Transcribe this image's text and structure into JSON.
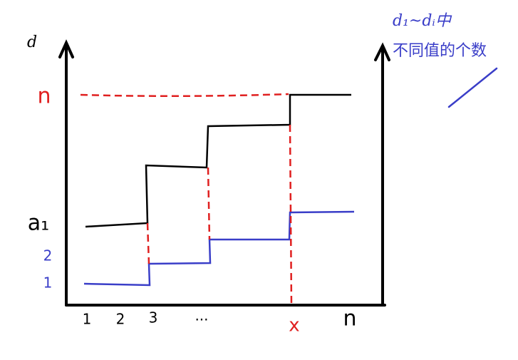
{
  "axis_label": "d",
  "y_labels": [
    "n",
    "a₁",
    "2",
    "1"
  ],
  "x_labels": [
    "1",
    "2",
    "3",
    "...",
    "x",
    "n"
  ],
  "note": {
    "line1": "d₁~dᵢ中",
    "line2": "不同值的个数"
  }
}
